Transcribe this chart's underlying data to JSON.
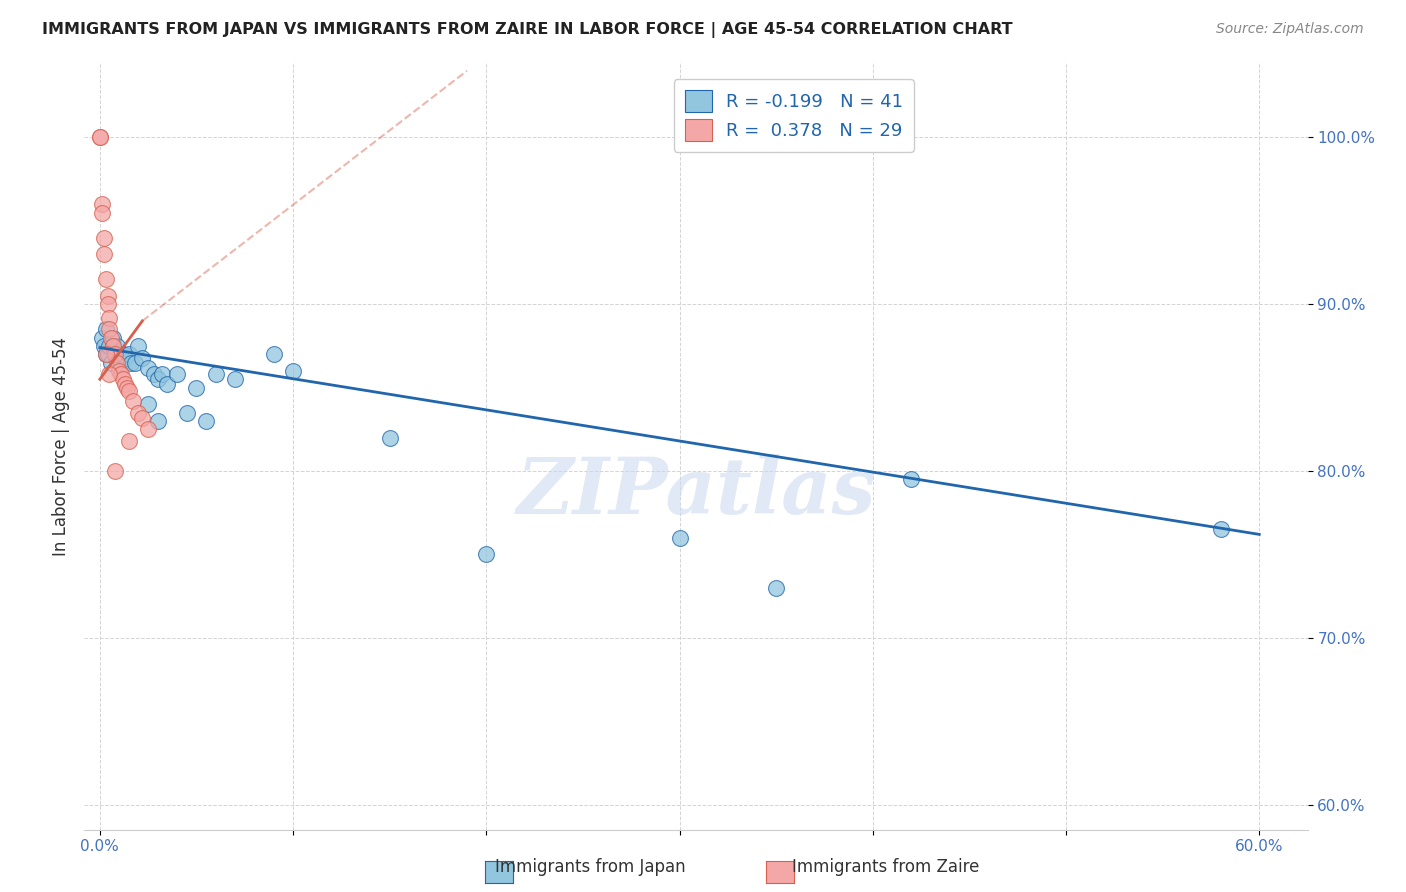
{
  "title": "IMMIGRANTS FROM JAPAN VS IMMIGRANTS FROM ZAIRE IN LABOR FORCE | AGE 45-54 CORRELATION CHART",
  "source": "Source: ZipAtlas.com",
  "ylabel": "In Labor Force | Age 45-54",
  "x_ticks": [
    0.0,
    0.1,
    0.2,
    0.3,
    0.4,
    0.5,
    0.6
  ],
  "x_tick_labels": [
    "0.0%",
    "",
    "",
    "",
    "",
    "",
    "60.0%"
  ],
  "y_ticks": [
    0.6,
    0.7,
    0.8,
    0.9,
    1.0
  ],
  "y_tick_labels": [
    "60.0%",
    "70.0%",
    "80.0%",
    "90.0%",
    "100.0%"
  ],
  "xlim": [
    -0.008,
    0.625
  ],
  "ylim": [
    0.585,
    1.045
  ],
  "legend_japan": "Immigrants from Japan",
  "legend_zaire": "Immigrants from Zaire",
  "R_japan": -0.199,
  "N_japan": 41,
  "R_zaire": 0.378,
  "N_zaire": 29,
  "color_japan": "#92c5de",
  "color_zaire": "#f4a7a7",
  "trendline_japan_color": "#2166ac",
  "trendline_zaire_color": "#d6604d",
  "japan_x": [
    0.001,
    0.002,
    0.003,
    0.003,
    0.004,
    0.005,
    0.006,
    0.007,
    0.007,
    0.008,
    0.009,
    0.01,
    0.011,
    0.012,
    0.013,
    0.015,
    0.016,
    0.018,
    0.02,
    0.022,
    0.025,
    0.028,
    0.03,
    0.032,
    0.035,
    0.04,
    0.05,
    0.06,
    0.07,
    0.09,
    0.1,
    0.15,
    0.3,
    0.42,
    0.58,
    0.025,
    0.03,
    0.045,
    0.055,
    0.2,
    0.35
  ],
  "japan_y": [
    0.88,
    0.875,
    0.87,
    0.885,
    0.87,
    0.875,
    0.865,
    0.875,
    0.88,
    0.87,
    0.875,
    0.868,
    0.865,
    0.87,
    0.868,
    0.87,
    0.865,
    0.865,
    0.875,
    0.868,
    0.862,
    0.858,
    0.855,
    0.858,
    0.852,
    0.858,
    0.85,
    0.858,
    0.855,
    0.87,
    0.86,
    0.82,
    0.76,
    0.795,
    0.765,
    0.84,
    0.83,
    0.835,
    0.83,
    0.75,
    0.73
  ],
  "zaire_x": [
    0.0,
    0.0,
    0.001,
    0.001,
    0.002,
    0.002,
    0.003,
    0.004,
    0.004,
    0.005,
    0.005,
    0.006,
    0.007,
    0.008,
    0.009,
    0.01,
    0.011,
    0.012,
    0.013,
    0.014,
    0.015,
    0.017,
    0.02,
    0.022,
    0.025,
    0.003,
    0.005,
    0.008,
    0.015
  ],
  "zaire_y": [
    1.0,
    1.0,
    0.96,
    0.955,
    0.94,
    0.93,
    0.915,
    0.905,
    0.9,
    0.892,
    0.885,
    0.88,
    0.875,
    0.87,
    0.865,
    0.86,
    0.858,
    0.855,
    0.852,
    0.85,
    0.848,
    0.842,
    0.835,
    0.832,
    0.825,
    0.87,
    0.858,
    0.8,
    0.818
  ],
  "trendline_japan_x0": 0.0,
  "trendline_japan_x1": 0.6,
  "trendline_japan_y0": 0.874,
  "trendline_japan_y1": 0.762,
  "trendline_zaire_x0": 0.0,
  "trendline_zaire_x1": 0.022,
  "trendline_zaire_y0": 0.855,
  "trendline_zaire_y1": 0.89,
  "trendline_zaire_dash_x0": 0.022,
  "trendline_zaire_dash_x1": 0.19,
  "trendline_zaire_dash_y0": 0.89,
  "trendline_zaire_dash_y1": 1.04,
  "watermark": "ZIPatlas",
  "background_color": "#ffffff",
  "grid_color": "#d0d0d0"
}
